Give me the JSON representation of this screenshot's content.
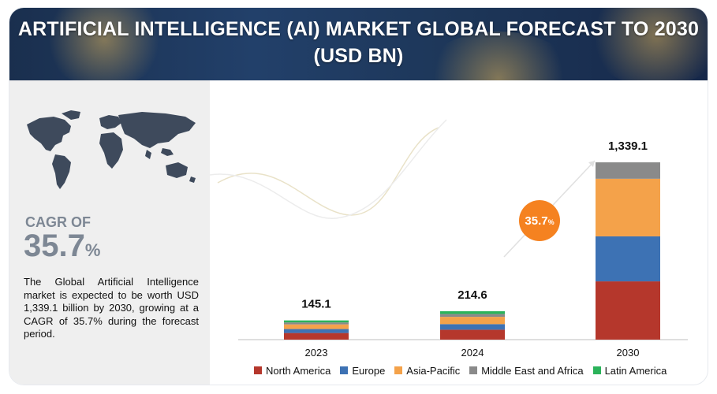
{
  "header": {
    "title_line1": "ARTIFICIAL INTELLIGENCE (AI) MARKET GLOBAL FORECAST TO 2030",
    "title_line2": "(USD BN)"
  },
  "sidebar": {
    "cagr_label": "CAGR OF",
    "cagr_value": "35.7",
    "cagr_unit": "%",
    "description": "The Global Artificial Intelligence market is expected to be worth USD 1,339.1 billion by 2030, growing at a CAGR of 35.7% during the forecast period."
  },
  "bubble": {
    "value": "35.7",
    "unit": "%"
  },
  "chart_data": {
    "type": "bar",
    "stacked": true,
    "categories": [
      "2023",
      "2024",
      "2030"
    ],
    "totals": [
      "145.1",
      "214.6",
      "1,339.1"
    ],
    "total_values": [
      145.1,
      214.6,
      1339.1
    ],
    "series": [
      {
        "name": "North America",
        "color": "#b5372c",
        "values": [
          50,
          75,
          440
        ]
      },
      {
        "name": "Europe",
        "color": "#3d72b4",
        "values": [
          30,
          42,
          340
        ]
      },
      {
        "name": "Asia-Pacific",
        "color": "#f4a24a",
        "values": [
          35,
          55,
          435
        ]
      },
      {
        "name": "Middle East and Africa",
        "color": "#8a8a8a",
        "values": [
          15,
          22,
          124
        ]
      },
      {
        "name": "Latin America",
        "color": "#2bb35a",
        "values": [
          15.1,
          20.6,
          0.1
        ]
      }
    ],
    "ylim": [
      0,
      1339.1
    ],
    "grid": false,
    "legend_position": "bottom"
  }
}
